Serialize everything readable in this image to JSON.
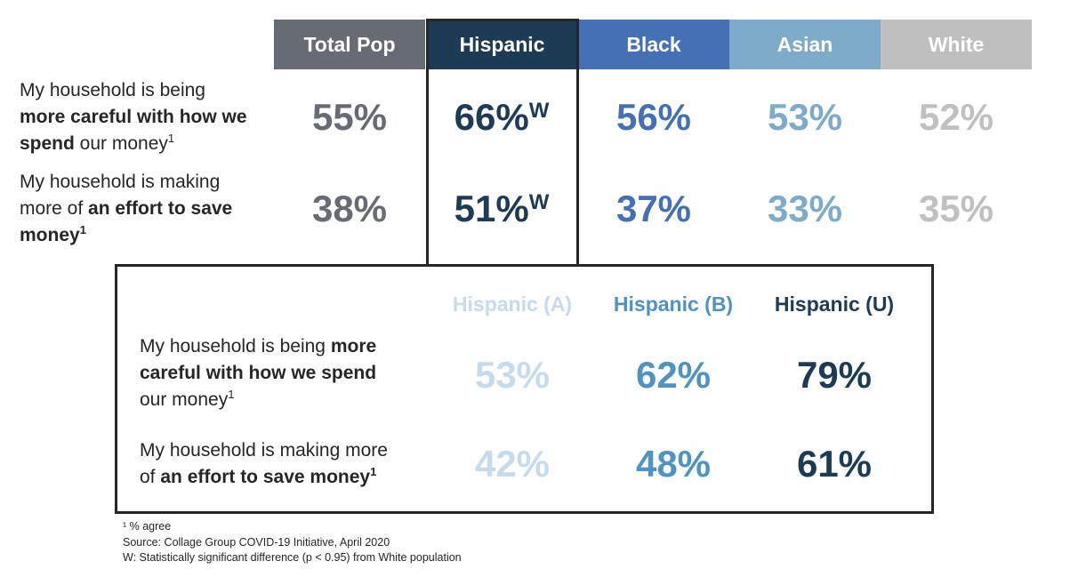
{
  "top_table": {
    "columns": [
      {
        "text": "Total Pop",
        "color": "#676b73"
      },
      {
        "text": "Hispanic",
        "color": "#1d3b54"
      },
      {
        "text": "Black",
        "color": "#4570b5"
      },
      {
        "text": "Asian",
        "color": "#7eabc9"
      },
      {
        "text": "White",
        "color": "#bfbfbf"
      }
    ],
    "rows": [
      {
        "label": [
          [
            {
              "text": "My household is being",
              "bold": false
            }
          ],
          [
            {
              "text": "more careful with how we",
              "bold": true
            }
          ],
          [
            {
              "text": "spend",
              "bold": true
            },
            {
              "text": " our money",
              "bold": false
            },
            {
              "text": "1",
              "bold": false,
              "sup": true
            }
          ]
        ],
        "cells": [
          {
            "text": "55%"
          },
          {
            "text": "66%",
            "sup": "W"
          },
          {
            "text": "56%"
          },
          {
            "text": "53%"
          },
          {
            "text": "52%"
          }
        ]
      },
      {
        "label": [
          [
            {
              "text": "My household is making",
              "bold": false
            }
          ],
          [
            {
              "text": "more of ",
              "bold": false
            },
            {
              "text": "an effort to save",
              "bold": true
            }
          ],
          [
            {
              "text": "money",
              "bold": true
            },
            {
              "text": "1",
              "bold": true,
              "sup": true
            }
          ]
        ],
        "cells": [
          {
            "text": "38%"
          },
          {
            "text": "51%",
            "sup": "W"
          },
          {
            "text": "37%"
          },
          {
            "text": "33%"
          },
          {
            "text": "35%"
          }
        ]
      }
    ]
  },
  "bottom_table": {
    "columns": [
      {
        "text": "Hispanic (A)",
        "color": "#c6dbeb"
      },
      {
        "text": "Hispanic (B)",
        "color": "#4f93c3"
      },
      {
        "text": "Hispanic (U)",
        "color": "#1d3b54"
      }
    ],
    "rows": [
      {
        "label": [
          [
            {
              "text": "My household is being ",
              "bold": false
            },
            {
              "text": "more",
              "bold": true
            }
          ],
          [
            {
              "text": "careful with how we spend",
              "bold": true
            }
          ],
          [
            {
              "text": "our money",
              "bold": false
            },
            {
              "text": "1",
              "bold": false,
              "sup": true
            }
          ]
        ],
        "cells": [
          {
            "text": "53%"
          },
          {
            "text": "62%"
          },
          {
            "text": "79%"
          }
        ]
      },
      {
        "label": [
          [
            {
              "text": "My household is making more",
              "bold": false
            }
          ],
          [
            {
              "text": "of ",
              "bold": false
            },
            {
              "text": "an effort to save money",
              "bold": true
            },
            {
              "text": "1",
              "bold": true,
              "sup": true
            }
          ]
        ],
        "cells": [
          {
            "text": "42%"
          },
          {
            "text": "48%"
          },
          {
            "text": "61%"
          }
        ]
      }
    ]
  },
  "footnotes": [
    "¹ % agree",
    "Source: Collage Group COVID-19 Initiative, April 2020",
    "W: Statistically significant difference (p < 0.95) from White population"
  ]
}
